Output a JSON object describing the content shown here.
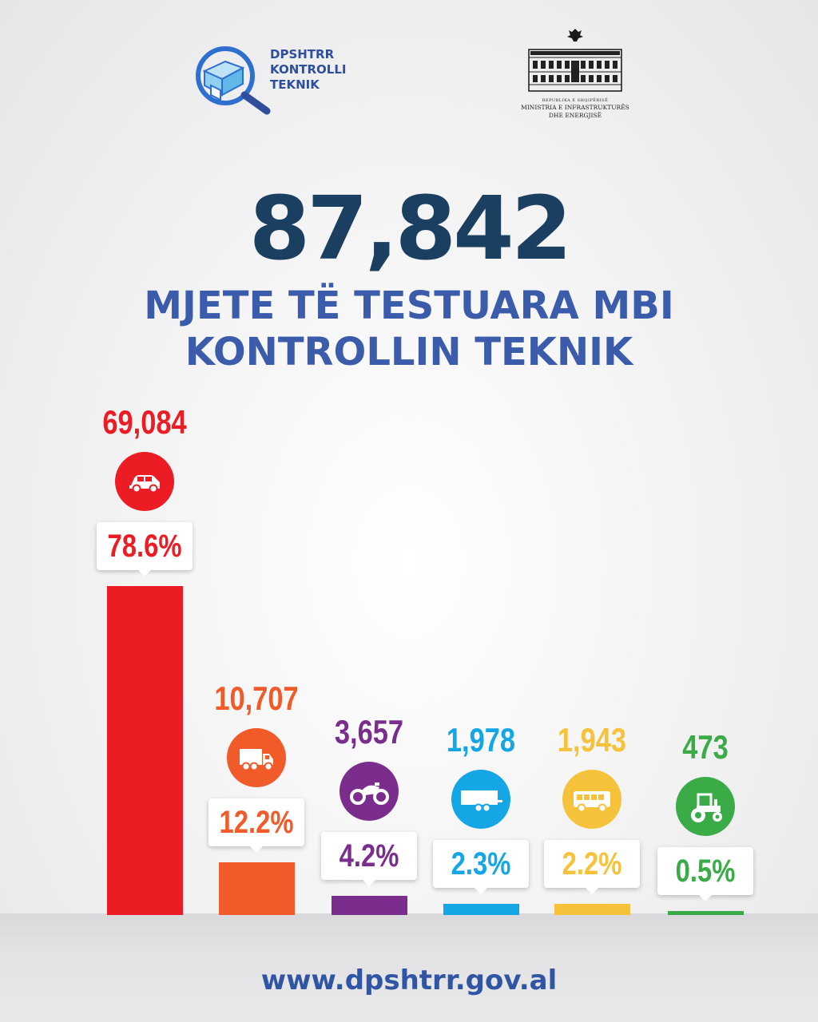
{
  "header": {
    "brand_lines": [
      "DPSHTRR",
      "KONTROLLI",
      "TEKNIK"
    ],
    "ministry_top": "REPUBLIKA E SHQIPËRISË",
    "ministry_line1": "MINISTRIA E INFRASTRUKTURËS",
    "ministry_line2": "DHE ENERGJISË"
  },
  "headline": {
    "total": "87,842",
    "subtitle_line1": "MJETE TË TESTUARA MBI",
    "subtitle_line2": "KONTROLLIN TEKNIK"
  },
  "chart_data": {
    "type": "bar",
    "categories": [
      "car",
      "truck",
      "motorcycle",
      "trailer",
      "bus",
      "tractor"
    ],
    "values": [
      69084,
      10707,
      3657,
      1978,
      1943,
      473
    ],
    "value_labels": [
      "69,084",
      "10,707",
      "3,657",
      "1,978",
      "1,943",
      "473"
    ],
    "percent_labels": [
      "78.6%",
      "12.2%",
      "4.2%",
      "2.3%",
      "2.2%",
      "0.5%"
    ],
    "colors": [
      "#ec1c24",
      "#f15a29",
      "#7b2d8e",
      "#15a6e6",
      "#f7c23b",
      "#3bab48"
    ],
    "icons": [
      "car-icon",
      "truck-icon",
      "motorcycle-icon",
      "trailer-icon",
      "bus-icon",
      "tractor-icon"
    ],
    "ylim": [
      0,
      69084
    ],
    "grid": false,
    "legend": "none"
  },
  "footer": {
    "url": "www.dpshtrr.gov.al"
  }
}
